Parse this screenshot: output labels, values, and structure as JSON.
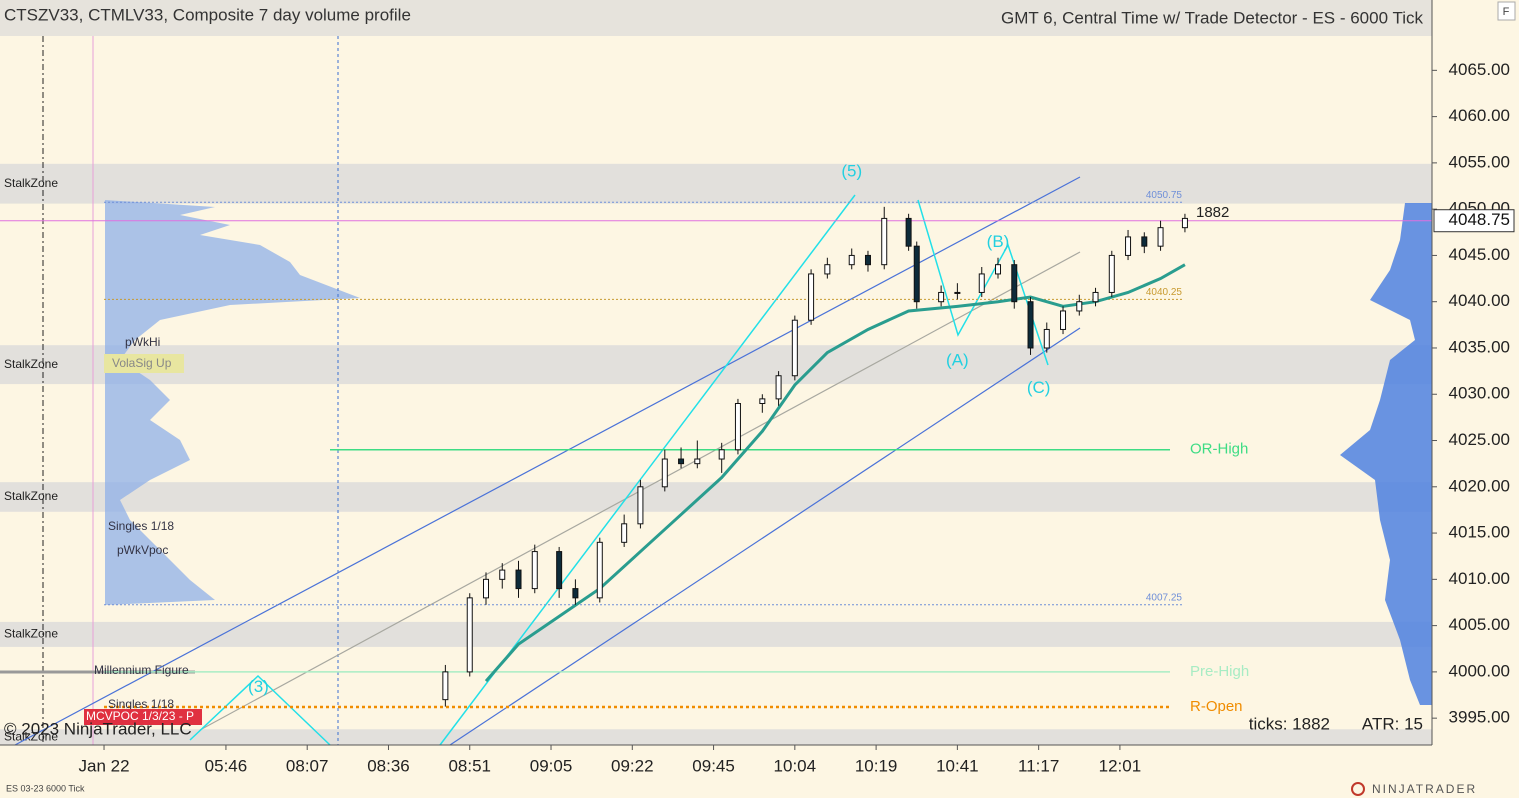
{
  "chart_data": {
    "type": "candlestick",
    "title": "CTSZV33, CTMLV33, Composite 7 day volume profile",
    "subtitle": "GMT 6, Central Time w/ Trade Detector - ES - 6000 Tick",
    "instrument": "ES 03-23 6000 Tick",
    "copyright": "© 2023 NinjaTrader, LLC",
    "ticks_text": "ticks: 1882",
    "atr_text": "ATR: 15",
    "brand": "NINJATRADER",
    "button": "F",
    "bar_count_label": "1882",
    "xlim": [
      -12.8,
      163.4
    ],
    "ylim": [
      3992.1,
      4072.6
    ],
    "xticks": [
      {
        "value": 0,
        "label": "Jan 22"
      },
      {
        "value": 15,
        "label": "05:46"
      },
      {
        "value": 25,
        "label": "08:07"
      },
      {
        "value": 35,
        "label": "08:36"
      },
      {
        "value": 45,
        "label": "08:51"
      },
      {
        "value": 55,
        "label": "09:05"
      },
      {
        "value": 65,
        "label": "09:22"
      },
      {
        "value": 75,
        "label": "09:45"
      },
      {
        "value": 85,
        "label": "10:04"
      },
      {
        "value": 95,
        "label": "10:19"
      },
      {
        "value": 105,
        "label": "10:41"
      },
      {
        "value": 115,
        "label": "11:17"
      },
      {
        "value": 125,
        "label": "12:01"
      }
    ],
    "yticks": [
      {
        "value": 3995,
        "label": "3995.00"
      },
      {
        "value": 4000,
        "label": "4000.00"
      },
      {
        "value": 4005,
        "label": "4005.00"
      },
      {
        "value": 4010,
        "label": "4010.00"
      },
      {
        "value": 4015,
        "label": "4015.00"
      },
      {
        "value": 4020,
        "label": "4020.00"
      },
      {
        "value": 4025,
        "label": "4025.00"
      },
      {
        "value": 4030,
        "label": "4030.00"
      },
      {
        "value": 4035,
        "label": "4035.00"
      },
      {
        "value": 4040,
        "label": "4040.00"
      },
      {
        "value": 4045,
        "label": "4045.00"
      },
      {
        "value": 4050,
        "label": "4050.00"
      },
      {
        "value": 4055,
        "label": "4055.00"
      },
      {
        "value": 4060,
        "label": "4060.00"
      },
      {
        "value": 4065,
        "label": "4065.00"
      }
    ],
    "last_price": {
      "value": 4048.75,
      "label": "4048.75"
    },
    "candles": {
      "x": [
        42,
        45,
        47,
        49,
        51,
        53,
        56,
        58,
        61,
        64,
        66,
        69,
        71,
        73,
        76,
        78,
        81,
        83,
        85,
        87,
        89,
        92,
        94,
        96,
        99,
        100,
        103,
        105,
        108,
        110,
        112,
        114,
        116,
        118,
        120,
        122,
        124,
        126,
        128,
        130,
        133
      ],
      "open": [
        3997,
        4000,
        4008,
        4010,
        4011,
        4009,
        4013,
        4009,
        4008,
        4014,
        4016,
        4020,
        4023,
        4022.5,
        4023,
        4024,
        4029,
        4029.5,
        4032,
        4038,
        4043,
        4044,
        4045,
        4044,
        4049,
        4046,
        4040,
        4041,
        4041,
        4043,
        4044,
        4040,
        4035,
        4037,
        4039,
        4040,
        4041,
        4045,
        4047,
        4046,
        4048
      ],
      "high": [
        4000.75,
        4008.5,
        4010.75,
        4011.75,
        4012,
        4013.75,
        4013.5,
        4010,
        4014.5,
        4017,
        4020.75,
        4024,
        4024.25,
        4025,
        4024.75,
        4029.5,
        4030,
        4032.5,
        4038.5,
        4043.5,
        4044.75,
        4045.75,
        4045.5,
        4050.25,
        4049.5,
        4046.5,
        4041.75,
        4042,
        4043.75,
        4044.75,
        4044.5,
        4040.5,
        4037.75,
        4039.5,
        4040.75,
        4041.5,
        4045.5,
        4047.75,
        4047.5,
        4048.75,
        4049.5
      ],
      "low": [
        3996.25,
        3999.5,
        4007.25,
        4009,
        4008,
        4008.5,
        4008,
        4007.25,
        4007.5,
        4013.5,
        4015.5,
        4019.5,
        4022,
        4022,
        4021.5,
        4023.5,
        4028,
        4028.75,
        4031.5,
        4037.5,
        4042.5,
        4043.5,
        4043.25,
        4043.5,
        4045.5,
        4039.25,
        4039.5,
        4040.25,
        4040.5,
        4042.5,
        4039.25,
        4034.25,
        4034.5,
        4036.5,
        4038.5,
        4039.5,
        4040.5,
        4044.5,
        4045.25,
        4045.5,
        4047.5
      ],
      "close": [
        4000,
        4008,
        4010,
        4011,
        4009,
        4013,
        4009,
        4008,
        4014,
        4016,
        4020,
        4023,
        4022.5,
        4023,
        4024,
        4029,
        4029.5,
        4032,
        4038,
        4043,
        4044,
        4045,
        4044,
        4049,
        4046,
        4040,
        4041,
        4041,
        4043,
        4044,
        4040,
        4035,
        4037,
        4039,
        4040,
        4041,
        4045,
        4047,
        4046,
        4048,
        4049
      ]
    },
    "series": [
      {
        "name": "EMA",
        "color": "#2a9d8f",
        "x": [
          47,
          51,
          56,
          61,
          66,
          71,
          76,
          81,
          85,
          89,
          94,
          99,
          105,
          110,
          114,
          118,
          122,
          126,
          130,
          133
        ],
        "values": [
          3999,
          4003,
          4006,
          4009,
          4013,
          4017,
          4021,
          4026,
          4031,
          4034.5,
          4037,
          4039,
          4039.5,
          4040,
          4040.5,
          4039.5,
          4040,
          4041,
          4042.5,
          4044
        ]
      }
    ],
    "zones": [
      {
        "label": "StalkZone",
        "from": 4050.6,
        "to": 4054.9
      },
      {
        "label": "StalkZone",
        "from": 4031.1,
        "to": 4035.3
      },
      {
        "label": "StalkZone",
        "from": 4017.3,
        "to": 4020.5
      },
      {
        "label": "StalkZone",
        "from": 4002.7,
        "to": 4005.4
      },
      {
        "label": "StalkZone",
        "from": 3992.1,
        "to": 3993.8
      }
    ],
    "levels": [
      {
        "label": "OR-High",
        "value": 4024,
        "color": "#3ddc84"
      },
      {
        "label": "Pre-High",
        "value": 4000,
        "color": "#a8ecc4"
      },
      {
        "label": "R-Open",
        "value": 3996.2,
        "color": "#f08c00"
      }
    ],
    "price_marks": [
      {
        "value": 4050.75,
        "label": "4050.75",
        "color": "#6f8fd8"
      },
      {
        "value": 4040.25,
        "label": "4040.25",
        "color": "#c89a30"
      },
      {
        "value": 4007.25,
        "label": "4007.25",
        "color": "#6f8fd8"
      }
    ],
    "annotations": [
      {
        "text": "(3)",
        "x": 19,
        "y": 3998.3
      },
      {
        "text": "(5)",
        "x": 92,
        "y": 4054
      },
      {
        "text": "(A)",
        "x": 105,
        "y": 4033.6
      },
      {
        "text": "(B)",
        "x": 110,
        "y": 4046.4
      },
      {
        "text": "(C)",
        "x": 115,
        "y": 4030.6
      }
    ],
    "profile_labels": [
      "pWkHi",
      "VolaSig Up",
      "Singles 1/18",
      "pWkVpoc",
      "Millennium Figure",
      "Singles 1/18",
      "MCVPOC 1/3/23 - P"
    ]
  }
}
